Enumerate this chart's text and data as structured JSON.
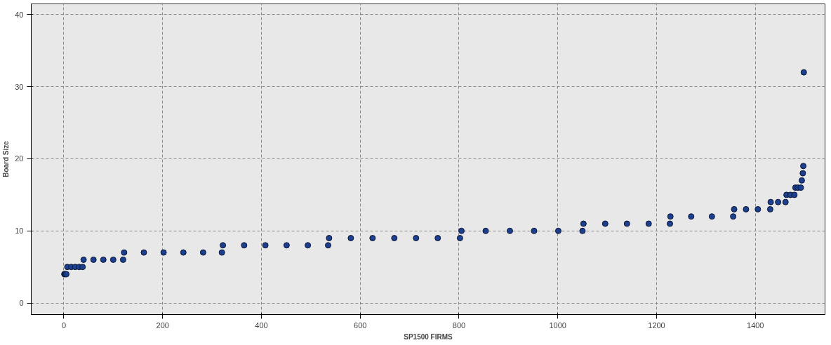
{
  "chart_data": {
    "type": "scatter",
    "xlabel": "SP1500 FIRMS",
    "ylabel": "Board Size",
    "series": [
      {
        "color": "#1c3f8f",
        "x": [
          1,
          3,
          5,
          7,
          15,
          23,
          31,
          38,
          40,
          60,
          80,
          100,
          120,
          122,
          162,
          202,
          242,
          282,
          320,
          322,
          365,
          408,
          451,
          494,
          535,
          537,
          581,
          625,
          669,
          713,
          757,
          802,
          805,
          854,
          903,
          952,
          1001,
          1050,
          1052,
          1096,
          1140,
          1184,
          1227,
          1228,
          1270,
          1312,
          1355,
          1357,
          1381,
          1405,
          1430,
          1431,
          1446,
          1461,
          1463,
          1471,
          1479,
          1481,
          1486,
          1492,
          1494,
          1496,
          1497,
          1498
        ],
        "values": [
          4,
          4,
          4,
          5,
          5,
          5,
          5,
          5,
          6,
          6,
          6,
          6,
          6,
          7,
          7,
          7,
          7,
          7,
          7,
          8,
          8,
          8,
          8,
          8,
          8,
          9,
          9,
          9,
          9,
          9,
          9,
          9,
          10,
          10,
          10,
          10,
          10,
          10,
          11,
          11,
          11,
          11,
          11,
          12,
          12,
          12,
          12,
          13,
          13,
          13,
          13,
          14,
          14,
          14,
          15,
          15,
          15,
          16,
          16,
          16,
          17,
          18,
          19,
          32
        ]
      }
    ],
    "xlim": [
      -66,
      1541
    ],
    "ylim": [
      -1.6,
      41.5
    ],
    "xticks": [
      0,
      200,
      400,
      600,
      800,
      1000,
      1200,
      1400
    ],
    "yticks": [
      0,
      10,
      20,
      30,
      40
    ],
    "grid": true,
    "marker": "circle"
  }
}
